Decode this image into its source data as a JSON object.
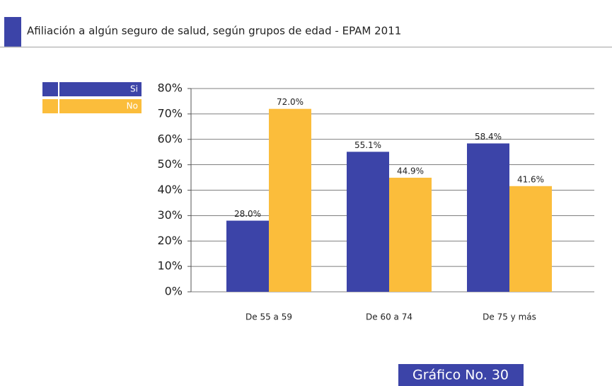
{
  "chart_data": {
    "type": "bar",
    "title": "Afiliación a algún seguro de salud, según grupos de edad - EPAM 2011",
    "annotation": "Gráfico No. 30",
    "categories": [
      "De 55 a 59",
      "De 60 a 74",
      "De 75 y más"
    ],
    "series": [
      {
        "name": "Si",
        "color": "#3c44a8",
        "values": [
          28.0,
          55.1,
          58.4
        ],
        "value_labels": [
          "28.0%",
          "55.1%",
          "58.4%"
        ]
      },
      {
        "name": "No",
        "color": "#fbbd3b",
        "values": [
          72.0,
          44.9,
          41.6
        ],
        "value_labels": [
          "72.0%",
          "44.9%",
          "41.6%"
        ]
      }
    ],
    "ylim": [
      0,
      80
    ],
    "yticks": [
      {
        "value": 0,
        "label": "0%"
      },
      {
        "value": 10,
        "label": "10%"
      },
      {
        "value": 20,
        "label": "20%"
      },
      {
        "value": 30,
        "label": "30%"
      },
      {
        "value": 40,
        "label": "40%"
      },
      {
        "value": 50,
        "label": "50%"
      },
      {
        "value": 60,
        "label": "60%"
      },
      {
        "value": 70,
        "label": "70%"
      },
      {
        "value": 80,
        "label": "80%"
      }
    ],
    "grid": true,
    "legend": "top-left"
  }
}
